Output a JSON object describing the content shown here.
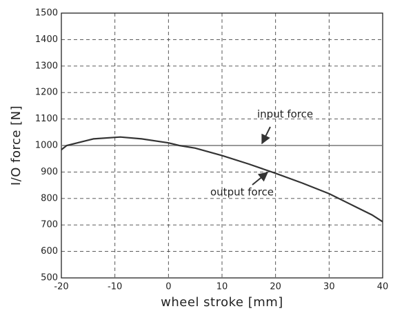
{
  "chart_data": {
    "type": "line",
    "x_label": "wheel stroke [mm]",
    "y_label": "I/O force [N]",
    "xlim": [
      -20,
      40
    ],
    "xticks": [
      -20,
      -10,
      0,
      10,
      20,
      30,
      40
    ],
    "ylim": [
      500,
      1500
    ],
    "yticks": [
      500,
      600,
      700,
      800,
      900,
      1000,
      1100,
      1200,
      1300,
      1400,
      1500
    ],
    "grid": true,
    "series": [
      {
        "name": "input force",
        "color": "#777777",
        "x": [
          -20,
          40
        ],
        "values": [
          1000,
          1000
        ]
      },
      {
        "name": "output force",
        "color": "#333333",
        "x": [
          -20,
          -19,
          -14,
          -9,
          -5,
          0,
          2,
          5,
          10,
          15,
          20,
          25,
          30,
          35,
          38,
          40
        ],
        "values": [
          984,
          1000,
          1025,
          1032,
          1025,
          1010,
          1000,
          990,
          962,
          930,
          895,
          858,
          818,
          768,
          738,
          712
        ]
      }
    ]
  }
}
